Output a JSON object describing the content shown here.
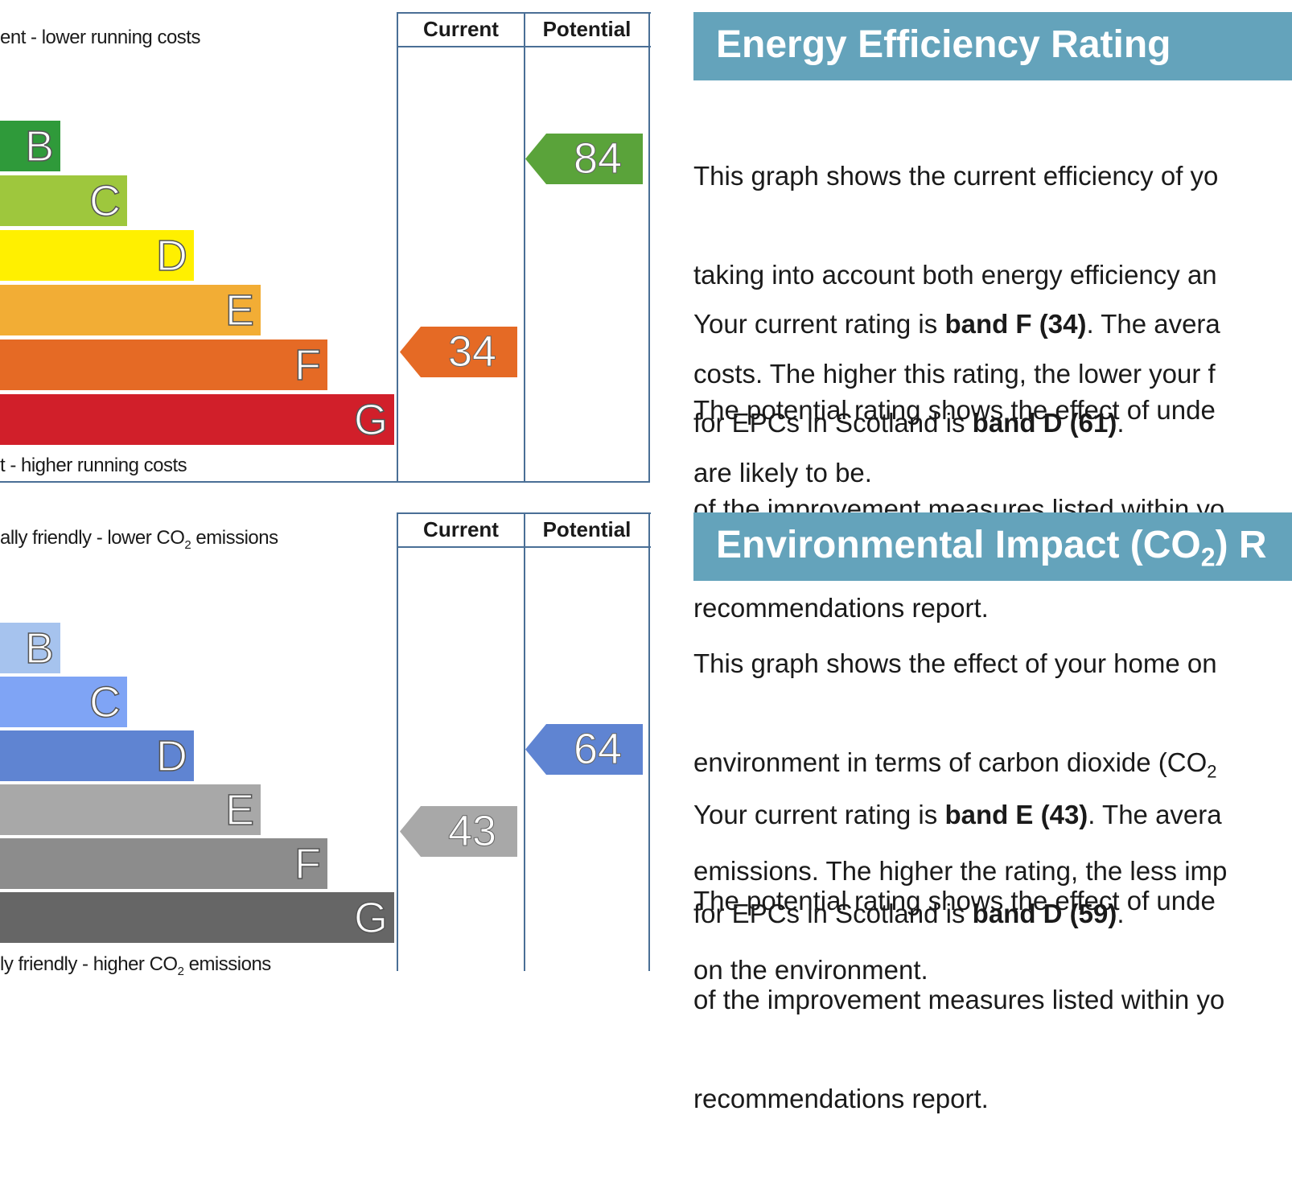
{
  "energy": {
    "column_current": "Current",
    "column_potential": "Potential",
    "top_caption": "ent - lower running costs",
    "bottom_caption": "t - higher running costs",
    "bands": [
      {
        "letter": "B",
        "color": "#2f9a3a"
      },
      {
        "letter": "C",
        "color": "#9ec73d"
      },
      {
        "letter": "D",
        "color": "#fff000"
      },
      {
        "letter": "E",
        "color": "#f2ad35"
      },
      {
        "letter": "F",
        "color": "#e56a25"
      },
      {
        "letter": "G",
        "color": "#d11f2a"
      }
    ],
    "current_value": "34",
    "current_color": "#e56a25",
    "potential_value": "84",
    "potential_color": "#5aa33a",
    "title": "Energy Efficiency Rating",
    "para1": [
      "This graph shows the current efficiency of yo",
      "taking into account both energy efficiency an",
      "costs. The higher this rating, the lower your f",
      "are likely to be."
    ],
    "para2_line1_a": "Your current rating is ",
    "para2_line1_b": "band F (34)",
    "para2_line1_c": ". The avera",
    "para2_line2_a": "for EPCs in Scotland is ",
    "para2_line2_b": "band D (61)",
    "para2_line2_c": ".",
    "para3": [
      "The potential rating shows the effect of unde",
      "of the improvement measures listed within yo",
      "recommendations report."
    ]
  },
  "environment": {
    "column_current": "Current",
    "column_potential": "Potential",
    "top_caption_a": "ally friendly - lower CO",
    "top_caption_sub": "2",
    "top_caption_b": " emissions",
    "bottom_caption_a": "ly friendly - higher CO",
    "bottom_caption_sub": "2",
    "bottom_caption_b": " emissions",
    "bands": [
      {
        "letter": "B",
        "color": "#a6c3ee"
      },
      {
        "letter": "C",
        "color": "#7fa4f5"
      },
      {
        "letter": "D",
        "color": "#5f84d2"
      },
      {
        "letter": "E",
        "color": "#a8a8a8"
      },
      {
        "letter": "F",
        "color": "#8c8c8c"
      },
      {
        "letter": "G",
        "color": "#666666"
      }
    ],
    "current_value": "43",
    "current_color": "#a8a8a8",
    "potential_value": "64",
    "potential_color": "#5f84d2",
    "title_a": "Environmental Impact (CO",
    "title_sub": "2",
    "title_b": ") R",
    "para1_line1": "This graph shows the effect of your home on",
    "para1_line2_a": "environment in terms of carbon dioxide (CO",
    "para1_line2_sub": "2",
    "para1_line3": "emissions. The higher the rating, the less imp",
    "para1_line4": "on the environment.",
    "para2_line1_a": "Your current rating is ",
    "para2_line1_b": "band E (43)",
    "para2_line1_c": ". The avera",
    "para2_line2_a": "for EPCs in Scotland is ",
    "para2_line2_b": "band D (59)",
    "para2_line2_c": ".",
    "para3": [
      "The potential rating shows the effect of unde",
      "of the improvement measures listed within yo",
      "recommendations report."
    ]
  }
}
